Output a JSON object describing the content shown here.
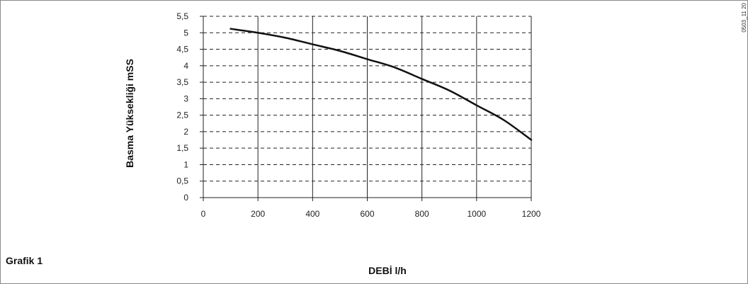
{
  "caption": "Grafik 1",
  "figure_code": "0503_11 20",
  "chart_data": {
    "type": "line",
    "title": "",
    "xlabel": "DEBİ l/h",
    "ylabel": "Basma Yüksekliği mSS",
    "xlim": [
      0,
      1200
    ],
    "ylim": [
      0,
      5.5
    ],
    "x_ticks": [
      "0",
      "200",
      "400",
      "600",
      "800",
      "1000",
      "1200"
    ],
    "y_ticks": [
      "0",
      "0,5",
      "1",
      "1,5",
      "2",
      "2,5",
      "3",
      "3,5",
      "4",
      "4,5",
      "5",
      "5,5"
    ],
    "grid": true,
    "series": [
      {
        "x": [
          100,
          200,
          300,
          400,
          500,
          600,
          700,
          800,
          900,
          1000,
          1100,
          1200
        ],
        "y": [
          5.12,
          5.0,
          4.85,
          4.65,
          4.45,
          4.2,
          3.95,
          3.6,
          3.25,
          2.8,
          2.35,
          1.75
        ]
      }
    ],
    "line_color": "#111111"
  }
}
